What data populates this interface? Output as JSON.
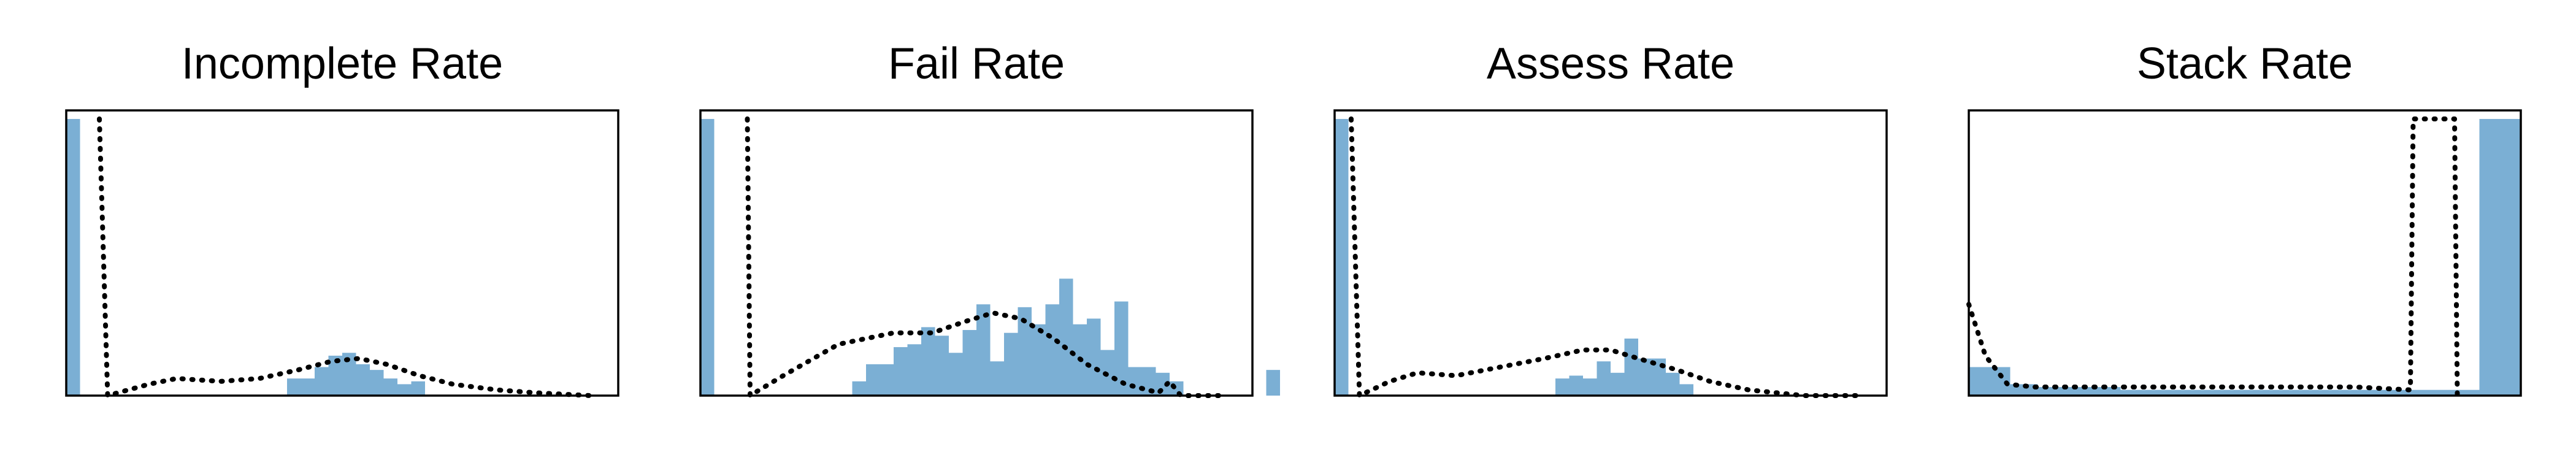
{
  "chart_data": [
    {
      "type": "bar",
      "title": "Incomplete Rate",
      "xlabel": "",
      "ylabel": "",
      "xlim": [
        0,
        1
      ],
      "ylim": [
        0,
        1
      ],
      "bin_width": 0.025,
      "bars": [
        0.97,
        0,
        0,
        0,
        0,
        0,
        0,
        0,
        0,
        0,
        0,
        0,
        0,
        0,
        0,
        0,
        0.06,
        0.06,
        0.1,
        0.14,
        0.15,
        0.11,
        0.09,
        0.06,
        0.04,
        0.05
      ],
      "series": [
        {
          "name": "",
          "style": "dotted",
          "points": [
            [
              0.06,
              0.97
            ],
            [
              0.075,
              0.0
            ],
            [
              0.15,
              0.04
            ],
            [
              0.2,
              0.06
            ],
            [
              0.28,
              0.05
            ],
            [
              0.35,
              0.06
            ],
            [
              0.42,
              0.09
            ],
            [
              0.48,
              0.12
            ],
            [
              0.53,
              0.13
            ],
            [
              0.58,
              0.11
            ],
            [
              0.64,
              0.07
            ],
            [
              0.7,
              0.04
            ],
            [
              0.78,
              0.02
            ],
            [
              0.85,
              0.01
            ],
            [
              0.95,
              0.0
            ]
          ]
        }
      ],
      "grid": false
    },
    {
      "type": "bar",
      "title": "Fail Rate",
      "xlabel": "",
      "ylabel": "",
      "xlim": [
        0,
        1
      ],
      "ylim": [
        0,
        1
      ],
      "bin_width": 0.025,
      "bars": [
        0.97,
        0,
        0,
        0,
        0,
        0,
        0,
        0,
        0,
        0,
        0,
        0.05,
        0.11,
        0.11,
        0.17,
        0.18,
        0.24,
        0.21,
        0.15,
        0.23,
        0.32,
        0.12,
        0.22,
        0.31,
        0.25,
        0.32,
        0.41,
        0.25,
        0.27,
        0.16,
        0.33,
        0.1,
        0.1,
        0.08,
        0.05,
        0,
        0,
        0,
        0,
        0,
        0,
        0.09
      ],
      "series": [
        {
          "name": "",
          "style": "dotted",
          "points": [
            [
              0.085,
              0.97
            ],
            [
              0.09,
              0.0
            ],
            [
              0.15,
              0.07
            ],
            [
              0.25,
              0.18
            ],
            [
              0.35,
              0.22
            ],
            [
              0.42,
              0.22
            ],
            [
              0.48,
              0.26
            ],
            [
              0.53,
              0.29
            ],
            [
              0.58,
              0.27
            ],
            [
              0.64,
              0.2
            ],
            [
              0.7,
              0.11
            ],
            [
              0.77,
              0.04
            ],
            [
              0.83,
              0.01
            ],
            [
              0.85,
              0.05
            ],
            [
              0.87,
              0.0
            ],
            [
              0.95,
              0.0
            ]
          ]
        }
      ],
      "grid": false
    },
    {
      "type": "bar",
      "title": "Assess Rate",
      "xlabel": "",
      "ylabel": "",
      "xlim": [
        0,
        1
      ],
      "ylim": [
        0,
        1
      ],
      "bin_width": 0.025,
      "bars": [
        0.97,
        0,
        0,
        0,
        0,
        0,
        0,
        0,
        0,
        0,
        0,
        0,
        0,
        0,
        0,
        0,
        0.06,
        0.07,
        0.06,
        0.12,
        0.08,
        0.2,
        0.13,
        0.13,
        0.08,
        0.04
      ],
      "series": [
        {
          "name": "",
          "style": "dotted",
          "points": [
            [
              0.03,
              0.97
            ],
            [
              0.045,
              0.0
            ],
            [
              0.1,
              0.05
            ],
            [
              0.15,
              0.08
            ],
            [
              0.22,
              0.07
            ],
            [
              0.3,
              0.1
            ],
            [
              0.38,
              0.13
            ],
            [
              0.45,
              0.16
            ],
            [
              0.5,
              0.16
            ],
            [
              0.55,
              0.13
            ],
            [
              0.62,
              0.09
            ],
            [
              0.68,
              0.05
            ],
            [
              0.75,
              0.02
            ],
            [
              0.85,
              0.0
            ],
            [
              0.95,
              0.0
            ]
          ]
        }
      ],
      "grid": false
    },
    {
      "type": "bar",
      "title": "Stack Rate",
      "xlabel": "",
      "ylabel": "",
      "xlim": [
        0,
        1
      ],
      "ylim": [
        0,
        1
      ],
      "bin_width": 0.025,
      "bars": [
        0.1,
        0.1,
        0.1,
        0.04,
        0.04,
        0.03,
        0.03,
        0.03,
        0.03,
        0.03,
        0.03,
        0.02,
        0.02,
        0.02,
        0.02,
        0.02,
        0.02,
        0.02,
        0.02,
        0.02,
        0.02,
        0.02,
        0.02,
        0.02,
        0.02,
        0.02,
        0.02,
        0.02,
        0.02,
        0.02,
        0.02,
        0.02,
        0.02,
        0.02,
        0.02,
        0.02,
        0.02,
        0.97,
        0.97,
        0.97
      ],
      "series": [
        {
          "name": "",
          "style": "dotted",
          "points": [
            [
              0.0,
              0.32
            ],
            [
              0.03,
              0.14
            ],
            [
              0.07,
              0.04
            ],
            [
              0.12,
              0.03
            ],
            [
              0.3,
              0.03
            ],
            [
              0.5,
              0.03
            ],
            [
              0.7,
              0.03
            ],
            [
              0.8,
              0.02
            ],
            [
              0.805,
              0.97
            ],
            [
              0.88,
              0.97
            ],
            [
              0.885,
              0.0
            ]
          ]
        }
      ],
      "grid": false
    }
  ],
  "colors": {
    "bar": "#7bafd4",
    "line": "#000000",
    "frame": "#000000"
  }
}
